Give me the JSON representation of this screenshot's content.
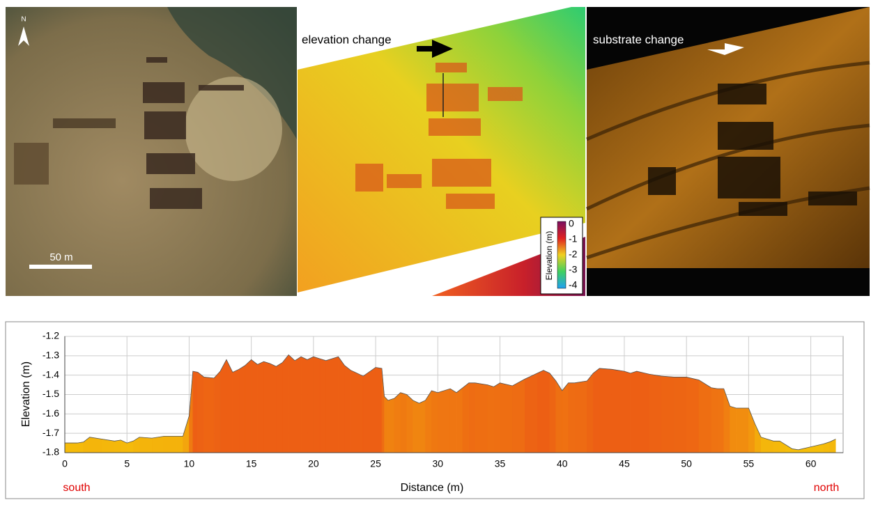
{
  "panels": {
    "compass": "N",
    "scale_bar": "50 m",
    "elevation_annotation": "elevation change",
    "substrate_annotation": "substrate change",
    "colorbar": {
      "label": "Elevation (m)",
      "ticks": [
        "0",
        "-1",
        "-2",
        "-3",
        "-4"
      ]
    }
  },
  "chart_data": {
    "type": "area",
    "x_label": "Distance (m)",
    "y_label": "Elevation (m)",
    "annotations": [
      "south",
      "north"
    ],
    "x": [
      0,
      1,
      1.5,
      2,
      3,
      4,
      4.5,
      5,
      5.5,
      6,
      7,
      8,
      9,
      9.5,
      10,
      10.3,
      10.7,
      11.2,
      12,
      12.5,
      13,
      13.5,
      14,
      14.5,
      15,
      15.5,
      16,
      16.5,
      17,
      17.5,
      18,
      18.5,
      19,
      19.5,
      20,
      20.5,
      21,
      22,
      22.5,
      23,
      24,
      25,
      25.5,
      25.7,
      26,
      26.5,
      27,
      27.5,
      28,
      28.5,
      29,
      29.5,
      30,
      31,
      31.5,
      32,
      32.5,
      33,
      34,
      34.5,
      35,
      36,
      37,
      38,
      38.5,
      39,
      39.5,
      40,
      40.5,
      41,
      42,
      42.5,
      43,
      44,
      45,
      45.5,
      46,
      47,
      48,
      49,
      50,
      51,
      52,
      52.5,
      53,
      53.5,
      54,
      55,
      55.5,
      56,
      57,
      57.5,
      58,
      58.5,
      59,
      60,
      61,
      61.5,
      62
    ],
    "values": [
      -1.75,
      -1.75,
      -1.745,
      -1.72,
      -1.73,
      -1.74,
      -1.735,
      -1.75,
      -1.74,
      -1.72,
      -1.725,
      -1.715,
      -1.715,
      -1.715,
      -1.61,
      -1.38,
      -1.385,
      -1.41,
      -1.415,
      -1.38,
      -1.32,
      -1.385,
      -1.37,
      -1.35,
      -1.32,
      -1.345,
      -1.33,
      -1.34,
      -1.355,
      -1.335,
      -1.295,
      -1.325,
      -1.305,
      -1.32,
      -1.305,
      -1.315,
      -1.325,
      -1.305,
      -1.35,
      -1.375,
      -1.405,
      -1.36,
      -1.365,
      -1.51,
      -1.53,
      -1.52,
      -1.49,
      -1.5,
      -1.53,
      -1.545,
      -1.53,
      -1.48,
      -1.49,
      -1.47,
      -1.49,
      -1.465,
      -1.44,
      -1.44,
      -1.45,
      -1.46,
      -1.44,
      -1.455,
      -1.42,
      -1.39,
      -1.375,
      -1.39,
      -1.43,
      -1.48,
      -1.44,
      -1.44,
      -1.43,
      -1.39,
      -1.365,
      -1.37,
      -1.38,
      -1.39,
      -1.38,
      -1.395,
      -1.405,
      -1.41,
      -1.41,
      -1.425,
      -1.465,
      -1.47,
      -1.47,
      -1.56,
      -1.57,
      -1.57,
      -1.65,
      -1.72,
      -1.74,
      -1.74,
      -1.76,
      -1.78,
      -1.785,
      -1.77,
      -1.755,
      -1.745,
      -1.73
    ],
    "xlim": [
      0,
      62.6
    ],
    "ylim": [
      -1.8,
      -1.2
    ],
    "xticks": [
      0,
      5,
      10,
      15,
      20,
      25,
      30,
      35,
      40,
      45,
      50,
      55,
      60
    ],
    "yticks": [
      -1.8,
      -1.7,
      -1.6,
      -1.5,
      -1.4,
      -1.3,
      -1.2
    ],
    "grid": true
  }
}
